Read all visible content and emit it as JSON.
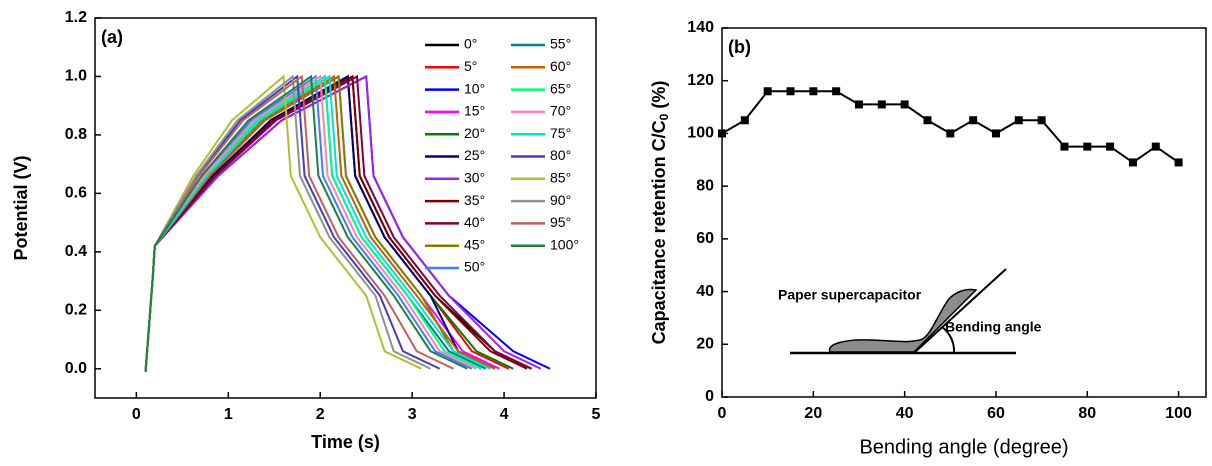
{
  "chart_data": [
    {
      "type": "line",
      "panel_label": "(a)",
      "xlabel": "Time (s)",
      "ylabel": "Potential (V)",
      "xlim": [
        -0.45,
        5
      ],
      "xticks": [
        0,
        1,
        2,
        3,
        4,
        5
      ],
      "ylim": [
        -0.1,
        1.2
      ],
      "yticks": [
        {
          "value": 0,
          "label": "0.0"
        },
        0.2,
        0.4,
        0.6,
        0.8,
        {
          "value": 1,
          "label": "1.0"
        },
        1.2
      ],
      "legend": "upper right",
      "legend_columns": 2,
      "series": [
        {
          "name": "0°",
          "color": "#000000",
          "x": [
            0.1,
            0.18,
            0.2,
            0.85,
            1.49,
            2.35,
            2.43,
            2.75,
            3.25,
            3.9,
            4.3
          ],
          "values": [
            -0.01,
            0.32,
            0.42,
            0.66,
            0.85,
            1.0,
            0.66,
            0.45,
            0.25,
            0.06,
            0
          ]
        },
        {
          "name": "5°",
          "color": "#ff0000",
          "x": [
            0.1,
            0.18,
            0.2,
            0.83,
            1.46,
            2.3,
            2.38,
            2.7,
            3.2,
            3.65,
            4.05
          ],
          "values": [
            -0.01,
            0.32,
            0.42,
            0.66,
            0.85,
            1.0,
            0.66,
            0.45,
            0.25,
            0.06,
            0
          ]
        },
        {
          "name": "10°",
          "color": "#0000ff",
          "x": [
            0.1,
            0.18,
            0.2,
            0.89,
            1.58,
            2.5,
            2.58,
            2.9,
            3.4,
            4.1,
            4.5
          ],
          "values": [
            -0.01,
            0.32,
            0.42,
            0.66,
            0.85,
            1.0,
            0.66,
            0.45,
            0.25,
            0.06,
            0
          ]
        },
        {
          "name": "15°",
          "color": "#ff00ff",
          "x": [
            0.1,
            0.18,
            0.2,
            0.8,
            1.4,
            2.2,
            2.28,
            2.6,
            3.1,
            3.55,
            3.95
          ],
          "values": [
            -0.01,
            0.32,
            0.42,
            0.66,
            0.85,
            1.0,
            0.66,
            0.45,
            0.25,
            0.06,
            0
          ]
        },
        {
          "name": "20°",
          "color": "#008000",
          "x": [
            0.1,
            0.18,
            0.2,
            0.83,
            1.46,
            2.3,
            2.38,
            2.7,
            3.2,
            3.7,
            4.1
          ],
          "values": [
            -0.01,
            0.32,
            0.42,
            0.66,
            0.85,
            1.0,
            0.66,
            0.45,
            0.25,
            0.06,
            0
          ]
        },
        {
          "name": "25°",
          "color": "#000080",
          "x": [
            0.1,
            0.18,
            0.2,
            0.83,
            1.46,
            2.3,
            2.38,
            2.7,
            3.2,
            3.5,
            3.9
          ],
          "values": [
            -0.01,
            0.32,
            0.42,
            0.66,
            0.85,
            1.0,
            0.66,
            0.45,
            0.25,
            0.06,
            0
          ]
        },
        {
          "name": "30°",
          "color": "#a020f0",
          "x": [
            0.1,
            0.18,
            0.2,
            0.89,
            1.58,
            2.5,
            2.58,
            2.9,
            3.4,
            4.0,
            4.4
          ],
          "values": [
            -0.01,
            0.32,
            0.42,
            0.66,
            0.85,
            1.0,
            0.66,
            0.45,
            0.25,
            0.06,
            0
          ]
        },
        {
          "name": "35°",
          "color": "#800000",
          "x": [
            0.1,
            0.18,
            0.2,
            0.85,
            1.49,
            2.35,
            2.43,
            2.75,
            3.25,
            3.85,
            4.25
          ],
          "values": [
            -0.01,
            0.32,
            0.42,
            0.66,
            0.85,
            1.0,
            0.66,
            0.45,
            0.25,
            0.06,
            0
          ]
        },
        {
          "name": "40°",
          "color": "#800040",
          "x": [
            0.1,
            0.18,
            0.2,
            0.86,
            1.52,
            2.4,
            2.48,
            2.8,
            3.3,
            3.9,
            4.3
          ],
          "values": [
            -0.01,
            0.32,
            0.42,
            0.66,
            0.85,
            1.0,
            0.66,
            0.45,
            0.25,
            0.06,
            0
          ]
        },
        {
          "name": "45°",
          "color": "#808000",
          "x": [
            0.1,
            0.18,
            0.2,
            0.8,
            1.4,
            2.2,
            2.28,
            2.6,
            3.1,
            3.45,
            3.85
          ],
          "values": [
            -0.01,
            0.32,
            0.42,
            0.66,
            0.85,
            1.0,
            0.66,
            0.45,
            0.25,
            0.06,
            0
          ]
        },
        {
          "name": "50°",
          "color": "#3f7fff",
          "x": [
            0.1,
            0.18,
            0.2,
            0.73,
            1.25,
            1.95,
            2.03,
            2.35,
            2.85,
            3.25,
            3.65
          ],
          "values": [
            -0.01,
            0.32,
            0.42,
            0.66,
            0.85,
            1.0,
            0.66,
            0.45,
            0.25,
            0.06,
            0
          ]
        },
        {
          "name": "55°",
          "color": "#008080",
          "x": [
            0.1,
            0.18,
            0.2,
            0.76,
            1.31,
            2.05,
            2.13,
            2.45,
            2.95,
            3.4,
            3.8
          ],
          "values": [
            -0.01,
            0.32,
            0.42,
            0.66,
            0.85,
            1.0,
            0.66,
            0.45,
            0.25,
            0.06,
            0
          ]
        },
        {
          "name": "60°",
          "color": "#c06000",
          "x": [
            0.1,
            0.18,
            0.2,
            0.79,
            1.37,
            2.15,
            2.23,
            2.55,
            3.05,
            3.5,
            3.9
          ],
          "values": [
            -0.01,
            0.32,
            0.42,
            0.66,
            0.85,
            1.0,
            0.66,
            0.45,
            0.25,
            0.06,
            0
          ]
        },
        {
          "name": "65°",
          "color": "#00ff80",
          "x": [
            0.1,
            0.18,
            0.2,
            0.76,
            1.31,
            2.05,
            2.13,
            2.45,
            2.95,
            3.35,
            3.75
          ],
          "values": [
            -0.01,
            0.32,
            0.42,
            0.66,
            0.85,
            1.0,
            0.66,
            0.45,
            0.25,
            0.06,
            0
          ]
        },
        {
          "name": "70°",
          "color": "#ff80c0",
          "x": [
            0.1,
            0.18,
            0.2,
            0.74,
            1.28,
            2.0,
            2.08,
            2.4,
            2.9,
            3.3,
            3.7
          ],
          "values": [
            -0.01,
            0.32,
            0.42,
            0.66,
            0.85,
            1.0,
            0.66,
            0.45,
            0.25,
            0.06,
            0
          ]
        },
        {
          "name": "75°",
          "color": "#00e0e0",
          "x": [
            0.1,
            0.18,
            0.2,
            0.77,
            1.34,
            2.1,
            2.18,
            2.5,
            3.0,
            3.45,
            3.85
          ],
          "values": [
            -0.01,
            0.32,
            0.42,
            0.66,
            0.85,
            1.0,
            0.66,
            0.45,
            0.25,
            0.06,
            0
          ]
        },
        {
          "name": "80°",
          "color": "#4040c0",
          "x": [
            0.1,
            0.18,
            0.2,
            0.67,
            1.13,
            1.75,
            1.83,
            2.15,
            2.65,
            2.9,
            3.3
          ],
          "values": [
            -0.01,
            0.32,
            0.42,
            0.66,
            0.85,
            1.0,
            0.66,
            0.45,
            0.25,
            0.06,
            0
          ]
        },
        {
          "name": "85°",
          "color": "#b0c030",
          "x": [
            0.1,
            0.18,
            0.2,
            0.62,
            1.04,
            1.6,
            1.68,
            2.0,
            2.5,
            2.7,
            3.1
          ],
          "values": [
            -0.01,
            0.32,
            0.42,
            0.66,
            0.85,
            1.0,
            0.66,
            0.45,
            0.25,
            0.06,
            0
          ]
        },
        {
          "name": "90°",
          "color": "#909090",
          "x": [
            0.1,
            0.18,
            0.2,
            0.65,
            1.1,
            1.7,
            1.78,
            2.1,
            2.6,
            2.8,
            3.2
          ],
          "values": [
            -0.01,
            0.32,
            0.42,
            0.66,
            0.85,
            1.0,
            0.66,
            0.45,
            0.25,
            0.06,
            0
          ]
        },
        {
          "name": "95°",
          "color": "#c06060",
          "x": [
            0.1,
            0.18,
            0.2,
            0.68,
            1.16,
            1.8,
            1.88,
            2.2,
            2.7,
            3.05,
            3.45
          ],
          "values": [
            -0.01,
            0.32,
            0.42,
            0.66,
            0.85,
            1.0,
            0.66,
            0.45,
            0.25,
            0.06,
            0
          ]
        },
        {
          "name": "100°",
          "color": "#208040",
          "x": [
            0.1,
            0.18,
            0.2,
            0.71,
            1.22,
            1.9,
            1.98,
            2.3,
            2.8,
            3.2,
            3.6
          ],
          "values": [
            -0.01,
            0.32,
            0.42,
            0.66,
            0.85,
            1.0,
            0.66,
            0.45,
            0.25,
            0.06,
            0
          ]
        }
      ]
    },
    {
      "type": "line",
      "panel_label": "(b)",
      "xlabel": "Bending angle (degree)",
      "ylabel": "Capacitance retention C/C",
      "ylabel_sub": "0",
      "ylabel_end": " (%)",
      "xlim": [
        0,
        106
      ],
      "xticks": [
        0,
        20,
        40,
        60,
        80,
        100
      ],
      "ylim": [
        0,
        140
      ],
      "yticks": [
        0,
        20,
        40,
        60,
        80,
        100,
        120,
        140
      ],
      "marker": "square",
      "color": "#000000",
      "x": [
        0,
        5,
        10,
        15,
        20,
        25,
        30,
        35,
        40,
        45,
        50,
        55,
        60,
        65,
        70,
        75,
        80,
        85,
        90,
        95,
        100
      ],
      "values": [
        100,
        105,
        116,
        116,
        116,
        116,
        111,
        111,
        111,
        105,
        100,
        105,
        100,
        105,
        105,
        95,
        95,
        95,
        89,
        95,
        89
      ],
      "annotations": [
        "Paper supercapacitor",
        "Bending angle"
      ]
    }
  ]
}
